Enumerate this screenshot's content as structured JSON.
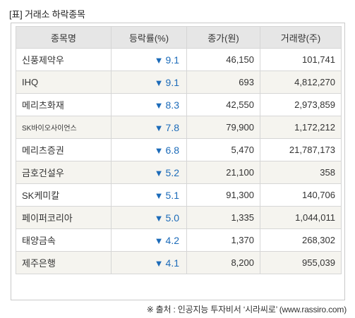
{
  "title": "[표] 거래소 하락종목",
  "table": {
    "headers": [
      "종목명",
      "등락률(%)",
      "종가(원)",
      "거래량(주)"
    ],
    "down_arrow": "▼",
    "rows": [
      {
        "name": "신풍제약우",
        "rate": "9.1",
        "close": "46,150",
        "volume": "101,741"
      },
      {
        "name": "IHQ",
        "rate": "9.1",
        "close": "693",
        "volume": "4,812,270"
      },
      {
        "name": "메리츠화재",
        "rate": "8.3",
        "close": "42,550",
        "volume": "2,973,859"
      },
      {
        "name": "SK바이오사이언스",
        "rate": "7.8",
        "close": "79,900",
        "volume": "1,172,212"
      },
      {
        "name": "메리츠증권",
        "rate": "6.8",
        "close": "5,470",
        "volume": "21,787,173"
      },
      {
        "name": "금호건설우",
        "rate": "5.2",
        "close": "21,100",
        "volume": "358"
      },
      {
        "name": "SK케미칼",
        "rate": "5.1",
        "close": "91,300",
        "volume": "140,706"
      },
      {
        "name": "페이퍼코리아",
        "rate": "5.0",
        "close": "1,335",
        "volume": "1,044,011"
      },
      {
        "name": "태양금속",
        "rate": "4.2",
        "close": "1,370",
        "volume": "268,302"
      },
      {
        "name": "제주은행",
        "rate": "4.1",
        "close": "8,200",
        "volume": "955,039"
      }
    ]
  },
  "source": "※ 출처 : 인공지능 투자비서 ‘시라씨로’ (www.rassiro.com)",
  "colors": {
    "down": "#1c6bb9",
    "header_bg": "#e6e6e6",
    "alt_row_bg": "#f5f4ef"
  }
}
